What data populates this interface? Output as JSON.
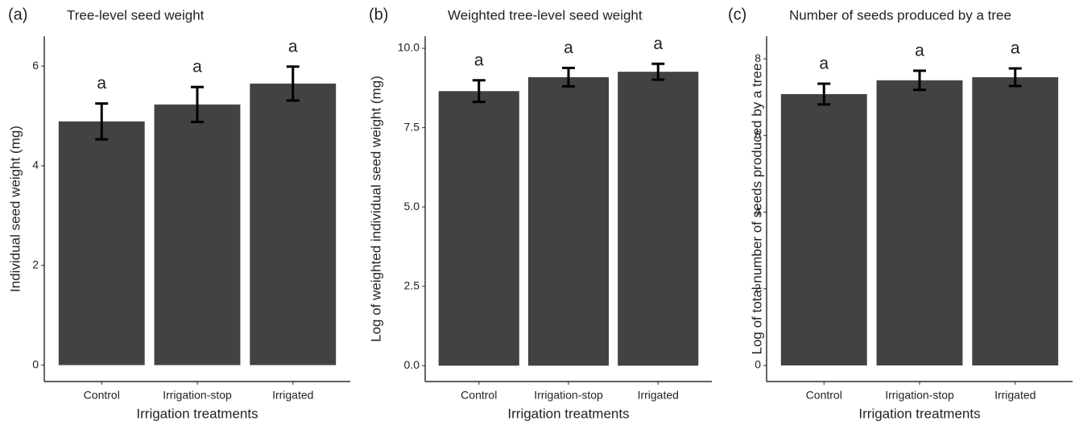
{
  "chart_data": [
    {
      "type": "bar",
      "label": "(a)",
      "title": "Tree-level seed weight",
      "xlabel": "Irrigation treatments",
      "ylabel": "Individual seed weight (mg)",
      "categories": [
        "Control",
        "Irrigation-stop",
        "Irrigated"
      ],
      "series": [
        {
          "name": null,
          "color": "#424242",
          "values": [
            4.89,
            5.23,
            5.65
          ],
          "errors": [
            0.36,
            0.35,
            0.34
          ]
        }
      ],
      "letters": [
        "a",
        "a",
        "a"
      ],
      "ylim": [
        -0.33,
        6.6
      ],
      "yticks": [
        0,
        2,
        4,
        6
      ]
    },
    {
      "type": "bar",
      "label": "(b)",
      "title": "Weighted tree-level seed weight",
      "xlabel": "Irrigation treatments",
      "ylabel": "Log of weighted individual seed weight (mg)",
      "categories": [
        "Control",
        "Irrigation-stop",
        "Irrigated"
      ],
      "series": [
        {
          "name": null,
          "color": "#424242",
          "values": [
            8.65,
            9.09,
            9.26
          ],
          "errors": [
            0.34,
            0.29,
            0.25
          ]
        }
      ],
      "letters": [
        "a",
        "a",
        "a"
      ],
      "ylim": [
        -0.5,
        10.38
      ],
      "yticks": [
        {
          "value": 0,
          "label": "0.0"
        },
        {
          "value": 2.5,
          "label": "2.5"
        },
        {
          "value": 5,
          "label": "5.0"
        },
        {
          "value": 7.5,
          "label": "7.5"
        },
        {
          "value": 10,
          "label": "10.0"
        }
      ]
    },
    {
      "type": "bar",
      "label": "(c)",
      "title": "Number of seeds produced by a tree",
      "xlabel": "Irrigation treatments",
      "ylabel": "Log of total number of seeds produced by a tree",
      "categories": [
        "Control",
        "Irrigation-stop",
        "Irrigated"
      ],
      "series": [
        {
          "name": null,
          "color": "#424242",
          "values": [
            7.08,
            7.44,
            7.52
          ],
          "errors": [
            0.27,
            0.25,
            0.23
          ]
        }
      ],
      "letters": [
        "a",
        "a",
        "a"
      ],
      "ylim": [
        -0.42,
        8.59
      ],
      "yticks": [
        0,
        2,
        4,
        6,
        8
      ]
    }
  ]
}
